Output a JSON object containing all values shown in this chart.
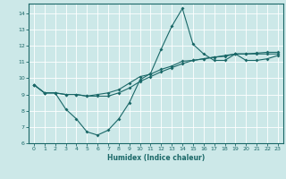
{
  "xlabel": "Humidex (Indice chaleur)",
  "bg_color": "#cce8e8",
  "line_color": "#1a6868",
  "grid_color": "#ffffff",
  "xlim": [
    -0.5,
    23.5
  ],
  "ylim": [
    6,
    14.6
  ],
  "yticks": [
    6,
    7,
    8,
    9,
    10,
    11,
    12,
    13,
    14
  ],
  "xticks": [
    0,
    1,
    2,
    3,
    4,
    5,
    6,
    7,
    8,
    9,
    10,
    11,
    12,
    13,
    14,
    15,
    16,
    17,
    18,
    19,
    20,
    21,
    22,
    23
  ],
  "line1_x": [
    0,
    1,
    2,
    3,
    4,
    5,
    6,
    7,
    8,
    9,
    10,
    11,
    12,
    13,
    14,
    15,
    16,
    17,
    18,
    19,
    20,
    21,
    22,
    23
  ],
  "line1_y": [
    9.6,
    9.1,
    9.1,
    8.1,
    7.5,
    6.7,
    6.5,
    6.8,
    7.5,
    8.5,
    9.9,
    10.3,
    11.8,
    13.2,
    14.3,
    12.1,
    11.5,
    11.1,
    11.1,
    11.5,
    11.1,
    11.1,
    11.2,
    11.4
  ],
  "line2_x": [
    0,
    1,
    2,
    3,
    4,
    5,
    6,
    7,
    8,
    9,
    10,
    11,
    12,
    13,
    14,
    15,
    16,
    17,
    18,
    19,
    20,
    21,
    22,
    23
  ],
  "line2_y": [
    9.6,
    9.1,
    9.1,
    9.0,
    9.0,
    8.9,
    8.9,
    8.9,
    9.1,
    9.4,
    9.8,
    10.1,
    10.4,
    10.65,
    10.9,
    11.1,
    11.2,
    11.3,
    11.35,
    11.5,
    11.5,
    11.5,
    11.5,
    11.5
  ],
  "line3_x": [
    0,
    1,
    2,
    3,
    4,
    5,
    6,
    7,
    8,
    9,
    10,
    11,
    12,
    13,
    14,
    15,
    16,
    17,
    18,
    19,
    20,
    21,
    22,
    23
  ],
  "line3_y": [
    9.6,
    9.1,
    9.1,
    9.0,
    9.0,
    8.9,
    9.0,
    9.1,
    9.3,
    9.7,
    10.1,
    10.25,
    10.55,
    10.75,
    11.05,
    11.1,
    11.2,
    11.3,
    11.4,
    11.5,
    11.5,
    11.55,
    11.6,
    11.6
  ]
}
